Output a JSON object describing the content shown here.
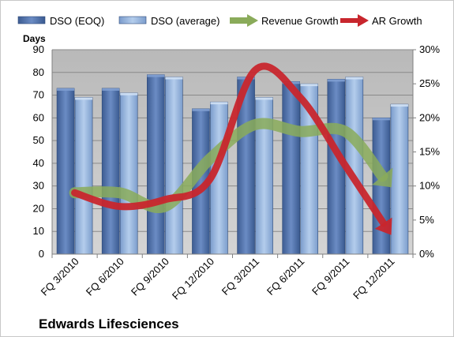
{
  "chart_data": {
    "type": "bar",
    "title": "Edwards Lifesciences",
    "ylabel": "Days",
    "categories": [
      "FQ 3/2010",
      "FQ 6/2010",
      "FQ 9/2010",
      "FQ 12/2010",
      "FQ 3/2011",
      "FQ 6/2011",
      "FQ 9/2011",
      "FQ 12/2011"
    ],
    "ylim": [
      0,
      90
    ],
    "yticks": [
      0,
      10,
      20,
      30,
      40,
      50,
      60,
      70,
      80,
      90
    ],
    "y2lim": [
      0,
      0.3
    ],
    "y2ticks": [
      "0%",
      "5%",
      "10%",
      "15%",
      "20%",
      "25%",
      "30%"
    ],
    "series": [
      {
        "name": "DSO (EOQ)",
        "kind": "bar",
        "axis": "left",
        "color": "#4f6fa8",
        "values": [
          73,
          73,
          79,
          64,
          78,
          76,
          77,
          60
        ]
      },
      {
        "name": "DSO (average)",
        "kind": "bar",
        "axis": "left",
        "color": "#8eb0dc",
        "values": [
          69,
          71,
          78,
          67,
          69,
          75,
          78,
          66
        ]
      },
      {
        "name": "Revenue Growth",
        "kind": "line-arrow",
        "axis": "right",
        "color": "#8aab5a",
        "values": [
          0.09,
          0.09,
          0.07,
          0.14,
          0.19,
          0.18,
          0.18,
          0.1
        ]
      },
      {
        "name": "AR Growth",
        "kind": "line-arrow",
        "axis": "right",
        "color": "#c8262d",
        "values": [
          0.09,
          0.07,
          0.08,
          0.11,
          0.27,
          0.23,
          0.13,
          0.03
        ]
      }
    ],
    "grid": true,
    "legend": "top",
    "plot_background": "#c0c0c0"
  }
}
